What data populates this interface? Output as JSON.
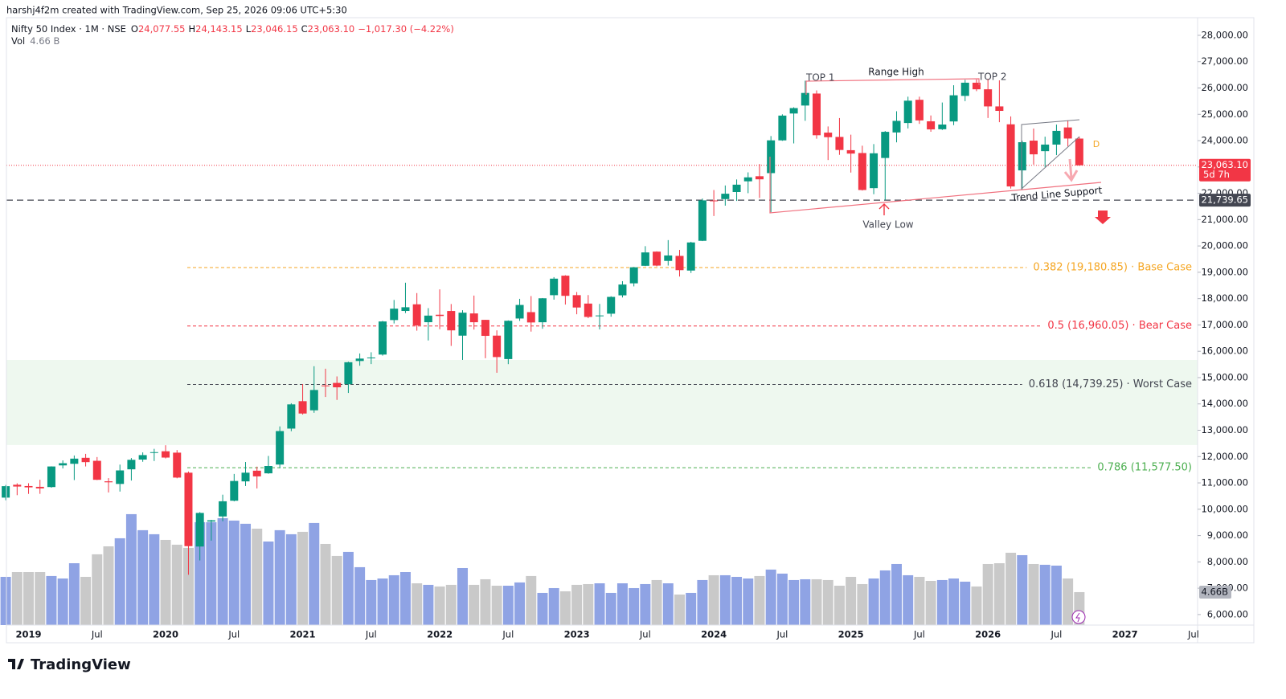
{
  "header": {
    "credit": "harshj4f2m created with TradingView.com, Sep 25, 2026 09:06 UTC+5:30",
    "logo": "TradingView"
  },
  "legend": {
    "symbol": "Nifty 50 Index · 1M · NSE",
    "o": "O",
    "o_value": "24,077.55",
    "h": "H",
    "h_value": "24,143.15",
    "l": "L",
    "l_value": "23,046.15",
    "c": "C",
    "c_value": "23,063.10",
    "change": "−1,017.30 (−4.22%)",
    "vol": "Vol",
    "vol_value": "4.66 B"
  },
  "annotations": {
    "top1": "TOP 1",
    "top2": "TOP 2",
    "range_high": "Range High",
    "valley_low": "Valley Low",
    "trend_support": "Trend Line Support",
    "marker": "D"
  },
  "chart_data": {
    "type": "candlestick",
    "up_color": "#089981",
    "down_color": "#f23645",
    "volume_up_color": "#8fa3e4",
    "volume_down_color": "#c9c9c9",
    "categories": [
      null,
      null,
      "2019",
      null,
      null,
      null,
      null,
      null,
      "Jul",
      null,
      null,
      null,
      null,
      null,
      "2020",
      null,
      null,
      null,
      null,
      null,
      "Jul",
      null,
      null,
      null,
      null,
      null,
      "2021",
      null,
      null,
      null,
      null,
      null,
      "Jul",
      null,
      null,
      null,
      null,
      null,
      "2022",
      null,
      null,
      null,
      null,
      null,
      "Jul",
      null,
      null,
      null,
      null,
      null,
      "2023",
      null,
      null,
      null,
      null,
      null,
      "Jul",
      null,
      null,
      null,
      null,
      null,
      "2024",
      null,
      null,
      null,
      null,
      null,
      "Jul",
      null,
      null,
      null,
      null,
      null,
      "2025",
      null,
      null,
      null,
      null,
      null,
      "Jul",
      null,
      null,
      null,
      null,
      null,
      "2026",
      null,
      null,
      null,
      null,
      null,
      "Jul",
      null,
      null,
      null,
      null,
      null,
      "2027",
      null,
      null,
      null,
      null,
      null,
      "Jul"
    ],
    "open": [
      10441,
      10930,
      10881,
      10851,
      10842,
      11665,
      11726,
      11953,
      11839,
      11060,
      10961,
      11516,
      11886,
      12138,
      12202,
      12149,
      11388,
      8584,
      9533,
      9726,
      10323,
      11058,
      11464,
      11364,
      11697,
      13063,
      14104,
      13758,
      14702,
      14798,
      14749,
      15630,
      15755,
      15874,
      17185,
      17531,
      17783,
      17104,
      17387,
      17530,
      16593,
      17437,
      17193,
      16594,
      15704,
      17244,
      17486,
      17102,
      18130,
      18871,
      18131,
      17811,
      17360,
      17427,
      18124,
      18580,
      19246,
      19784,
      19432,
      19622,
      19065,
      20195,
      21727,
      21780,
      22048,
      22455,
      22648,
      22766,
      24010,
      25030,
      25333,
      25788,
      24304,
      24141,
      23637,
      23529,
      22195,
      23341,
      24311,
      24669,
      25551,
      24735,
      24433,
      24729,
      25700,
      26200,
      25950,
      25300,
      24620,
      22870,
      24000,
      23600,
      23850,
      24500,
      24077.55,
      null,
      null,
      null,
      null,
      null,
      null,
      null,
      null,
      null,
      null
    ],
    "high": [
      10922,
      10985,
      10987,
      11119,
      11630,
      11856,
      12041,
      12103,
      11982,
      11182,
      11695,
      11945,
      12159,
      12294,
      12430,
      12247,
      11433,
      9889,
      9598,
      10553,
      11341,
      11794,
      11618,
      12025,
      13146,
      14025,
      14754,
      15432,
      15337,
      15045,
      15606,
      15916,
      15962,
      17154,
      17948,
      18604,
      18210,
      17639,
      18351,
      17794,
      17559,
      18115,
      17194,
      16794,
      17172,
      17992,
      18096,
      18022,
      18816,
      18888,
      18251,
      18134,
      17799,
      18089,
      18662,
      19201,
      19992,
      19796,
      20222,
      19850,
      20158,
      21801,
      22124,
      22297,
      22526,
      22795,
      23111,
      24174,
      24999,
      25268,
      26277,
      25907,
      24538,
      24858,
      24226,
      23807,
      23869,
      24365,
      25116,
      25669,
      25669,
      24956,
      25448,
      26104,
      26310,
      26325,
      26350,
      26290,
      24920,
      24000,
      24460,
      24150,
      24610,
      24770,
      24143.15,
      null,
      null,
      null,
      null,
      null,
      null,
      null,
      null,
      null,
      null
    ],
    "low": [
      10341,
      10534,
      10583,
      10585,
      10817,
      11549,
      11108,
      11625,
      11107,
      10637,
      10671,
      11090,
      11802,
      11832,
      11929,
      11175,
      7511,
      8055,
      8807,
      9544,
      10300,
      10882,
      10790,
      11347,
      11557,
      12963,
      13596,
      13662,
      14264,
      14152,
      14417,
      15450,
      15514,
      15834,
      17056,
      17452,
      16782,
      16410,
      16837,
      16203,
      15671,
      16824,
      15736,
      15183,
      15511,
      17154,
      16747,
      16855,
      17960,
      17774,
      17405,
      17256,
      16828,
      17313,
      18043,
      18464,
      19234,
      19224,
      19255,
      18838,
      18974,
      20184,
      21137,
      21530,
      21710,
      22004,
      21822,
      21282,
      23992,
      23894,
      24753,
      24073,
      23263,
      23460,
      22787,
      22105,
      21965,
      21744,
      23935,
      24463,
      24636,
      24337,
      24404,
      24588,
      25500,
      25880,
      24860,
      24700,
      22180,
      22140,
      23090,
      23000,
      23450,
      23780,
      23046.15,
      null,
      null,
      null,
      null,
      null,
      null,
      null,
      null,
      null,
      null
    ],
    "close": [
      10876,
      10862,
      10831,
      10792,
      11624,
      11748,
      11922,
      11789,
      11118,
      11023,
      11474,
      11877,
      12056,
      12168,
      11962,
      11202,
      8598,
      9860,
      9580,
      10302,
      11073,
      11388,
      11248,
      11642,
      12969,
      13982,
      13635,
      14529,
      14691,
      14631,
      15583,
      15722,
      15763,
      17132,
      17618,
      17672,
      16983,
      17354,
      17340,
      16794,
      17465,
      17103,
      16585,
      15780,
      17158,
      17759,
      17094,
      18012,
      18758,
      18105,
      17662,
      17304,
      17360,
      18065,
      18534,
      19189,
      19754,
      19254,
      19638,
      19080,
      20133,
      21731,
      21726,
      21983,
      22327,
      22605,
      22531,
      24011,
      24951,
      25236,
      25811,
      24205,
      24131,
      23645,
      23508,
      22125,
      23519,
      24334,
      24751,
      25517,
      24768,
      24427,
      24611,
      25722,
      26200,
      25950,
      25300,
      25130,
      22260,
      23940,
      23480,
      23850,
      24370,
      24080,
      23063.1,
      null,
      null,
      null,
      null,
      null,
      null,
      null,
      null,
      null,
      null
    ],
    "volume": [
      6.82,
      7.5,
      7.5,
      7.5,
      6.94,
      6.59,
      8.75,
      6.82,
      10.01,
      11.14,
      12.28,
      15.69,
      13.42,
      12.85,
      12.05,
      11.37,
      10.92,
      14.55,
      14.55,
      15.12,
      14.78,
      14.33,
      13.64,
      11.82,
      13.42,
      12.85,
      13.19,
      14.44,
      11.48,
      9.78,
      10.35,
      8.19,
      6.37,
      6.59,
      7.05,
      7.5,
      5.91,
      5.69,
      5.46,
      5.69,
      8.07,
      5.69,
      6.48,
      5.57,
      5.57,
      6.03,
      6.94,
      4.55,
      5.23,
      4.78,
      5.69,
      5.8,
      5.91,
      4.55,
      5.91,
      5.23,
      5.8,
      6.37,
      5.91,
      4.32,
      4.55,
      6.37,
      7.05,
      7.05,
      6.82,
      6.59,
      6.94,
      7.85,
      7.28,
      6.37,
      6.48,
      6.48,
      6.37,
      5.57,
      6.82,
      5.8,
      6.59,
      7.73,
      8.64,
      7.05,
      6.82,
      6.25,
      6.37,
      6.59,
      6.14,
      5.46,
      8.64,
      8.75,
      10.23,
      9.89,
      8.64,
      8.53,
      8.41,
      6.59,
      4.66,
      null,
      null,
      null,
      null,
      null,
      null,
      null,
      null,
      null,
      null
    ],
    "last_volume_label": "4.66B",
    "ylim": [
      5600,
      28670
    ],
    "yticks": [
      {
        "value": 6000,
        "label": "6,000.00"
      },
      {
        "value": 7000,
        "label": "7,000.00"
      },
      {
        "value": 8000,
        "label": "8,000.00"
      },
      {
        "value": 9000,
        "label": "9,000.00"
      },
      {
        "value": 10000,
        "label": "10,000.00"
      },
      {
        "value": 11000,
        "label": "11,000.00"
      },
      {
        "value": 12000,
        "label": "12,000.00"
      },
      {
        "value": 13000,
        "label": "13,000.00"
      },
      {
        "value": 14000,
        "label": "14,000.00"
      },
      {
        "value": 15000,
        "label": "15,000.00"
      },
      {
        "value": 16000,
        "label": "16,000.00"
      },
      {
        "value": 17000,
        "label": "17,000.00"
      },
      {
        "value": 18000,
        "label": "18,000.00"
      },
      {
        "value": 19000,
        "label": "19,000.00"
      },
      {
        "value": 20000,
        "label": "20,000.00"
      },
      {
        "value": 21000,
        "label": "21,000.00"
      },
      {
        "value": 22000,
        "label": "22,000.00"
      },
      {
        "value": 23000,
        "label": "23,000.00"
      },
      {
        "value": 24000,
        "label": "24,000.00"
      },
      {
        "value": 25000,
        "label": "25,000.00"
      },
      {
        "value": 26000,
        "label": "26,000.00"
      },
      {
        "value": 27000,
        "label": "27,000.00"
      },
      {
        "value": 28000,
        "label": "28,000.00"
      }
    ],
    "grid": false,
    "zone": {
      "from": 12440,
      "to": 15670,
      "color": "#eef8ef"
    },
    "levels": [
      {
        "value": 19180.85,
        "label": "0.382 (19,180.85) · Base Case",
        "color": "#f5a623"
      },
      {
        "value": 16960.05,
        "label": "0.5 (16,960.05) · Bear Case",
        "color": "#f23645"
      },
      {
        "value": 14739.25,
        "label": "0.618 (14,739.25) · Worst Case",
        "color": "#434651"
      },
      {
        "value": 11577.5,
        "label": "0.786 (11,577.50)",
        "color": "#4caf50"
      }
    ],
    "last_price": {
      "value": 23063.1,
      "label": "23,063.10",
      "countdown": "5d 7h",
      "color": "#f23645"
    },
    "support": {
      "value": 21739.65,
      "label": "21,739.65",
      "color": "#434651"
    }
  }
}
